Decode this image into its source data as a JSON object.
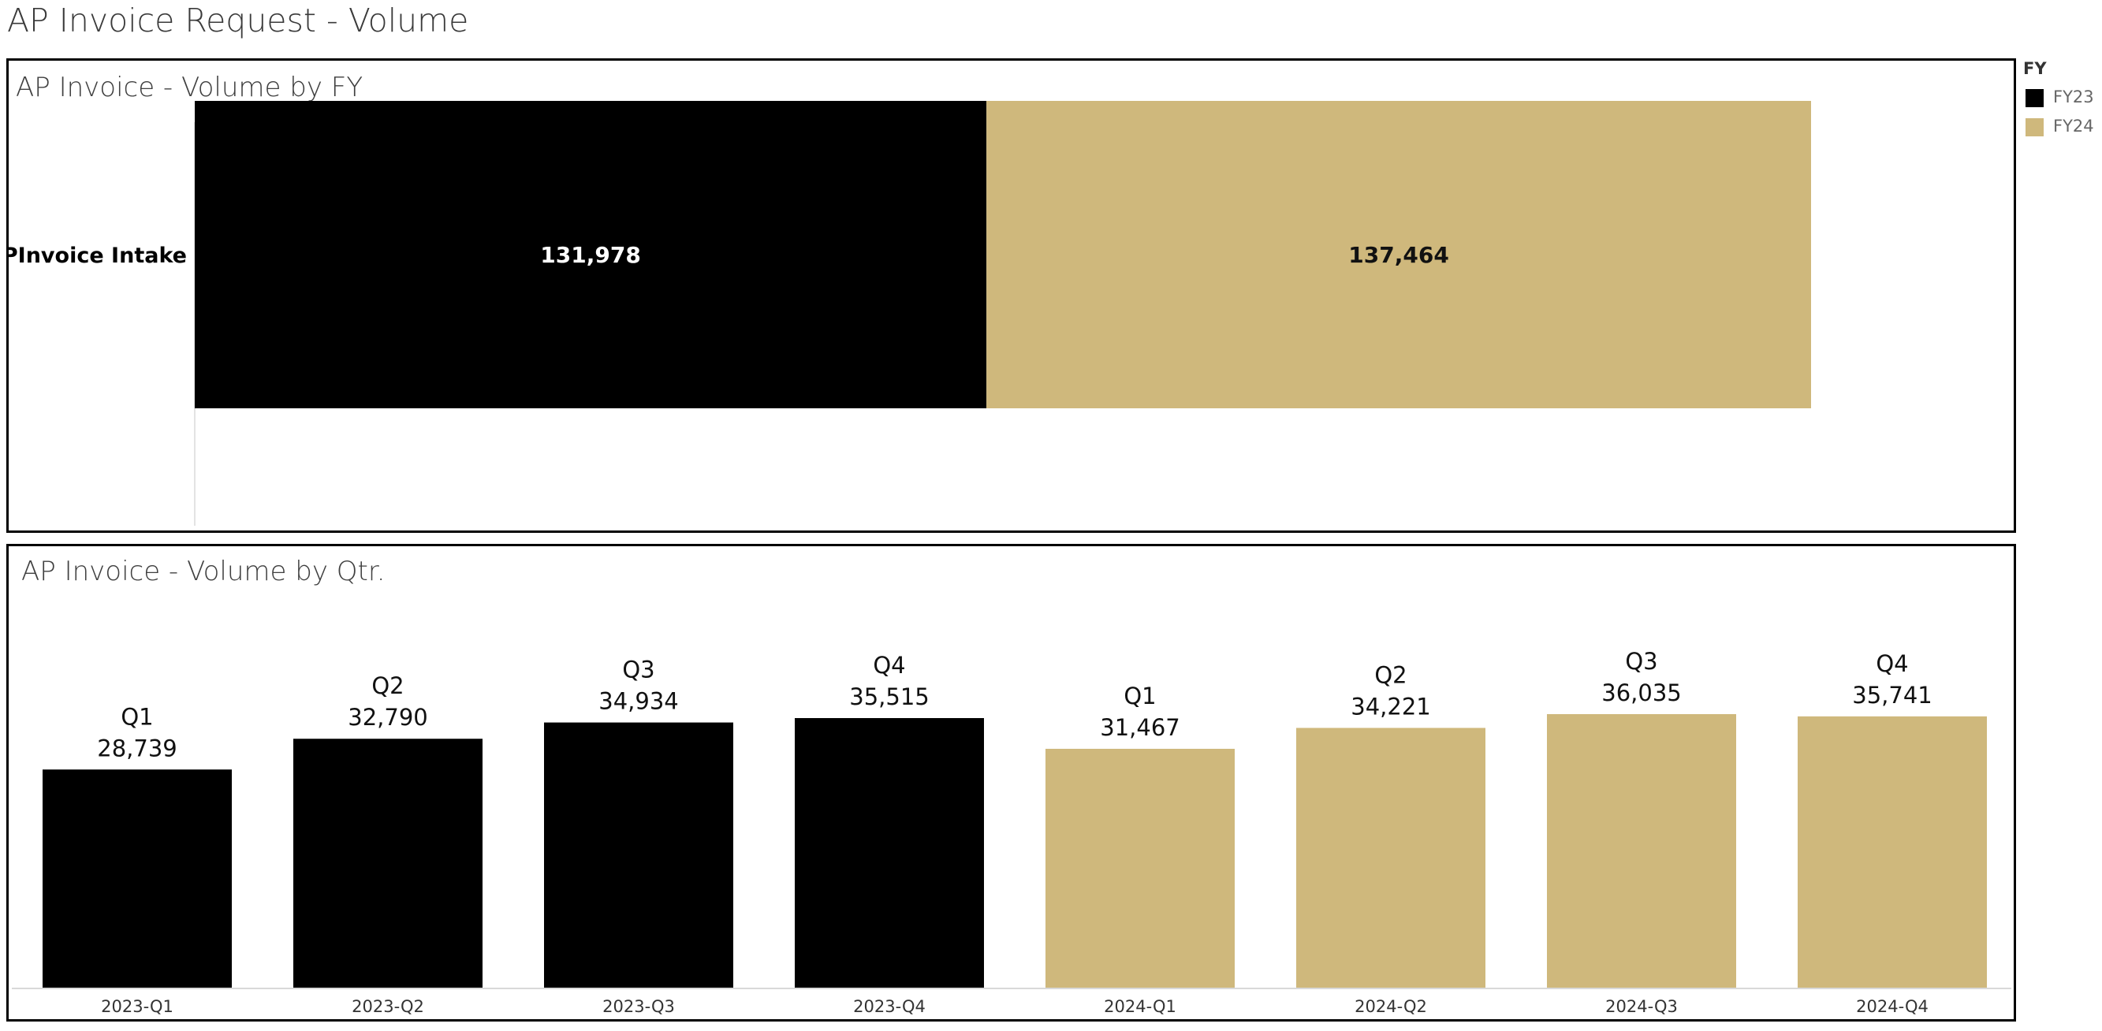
{
  "dashboard": {
    "title": "AP Invoice Request - Volume"
  },
  "legend": {
    "title": "FY",
    "items": [
      {
        "label": "FY23",
        "color": "#000000"
      },
      {
        "label": "FY24",
        "color": "#CFB87C"
      }
    ]
  },
  "chart_data": [
    {
      "type": "bar",
      "orientation": "horizontal",
      "stacked": true,
      "title": "AP Invoice - Volume by FY",
      "categories": [
        "APInvoice Intake"
      ],
      "series": [
        {
          "name": "FY23",
          "color": "#000000",
          "values": [
            131978
          ],
          "labels": [
            "131,978"
          ]
        },
        {
          "name": "FY24",
          "color": "#CFB87C",
          "values": [
            137464
          ],
          "labels": [
            "137,464"
          ]
        }
      ]
    },
    {
      "type": "bar",
      "title": "AP Invoice - Volume by Qtr.",
      "categories": [
        "2023-Q1",
        "2023-Q2",
        "2023-Q3",
        "2023-Q4",
        "2024-Q1",
        "2024-Q2",
        "2024-Q3",
        "2024-Q4"
      ],
      "values": [
        28739,
        32790,
        34934,
        35515,
        31467,
        34221,
        36035,
        35741
      ],
      "value_labels": [
        "28,739",
        "32,790",
        "34,934",
        "35,515",
        "31,467",
        "34,221",
        "36,035",
        "35,741"
      ],
      "quarter_labels": [
        "Q1",
        "Q2",
        "Q3",
        "Q4",
        "Q1",
        "Q2",
        "Q3",
        "Q4"
      ],
      "fy": [
        "FY23",
        "FY23",
        "FY23",
        "FY23",
        "FY24",
        "FY24",
        "FY24",
        "FY24"
      ],
      "ylim": [
        0,
        36035
      ]
    }
  ]
}
